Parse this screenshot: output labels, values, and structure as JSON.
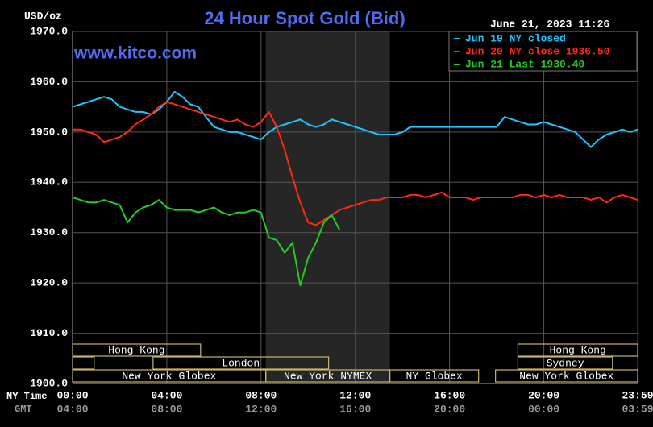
{
  "chart_data": {
    "type": "line",
    "title": "24 Hour Spot Gold (Bid)",
    "ylabel": "USD/oz",
    "timestamp": "June 21, 2023 11:26",
    "watermark": "www.kitco.com",
    "xlabel": "NY Time",
    "xlabel2": "GMT",
    "x": [
      0,
      20,
      40,
      60,
      80,
      100,
      120,
      140,
      160,
      180,
      200,
      220,
      240,
      260,
      280,
      300,
      320,
      340,
      360,
      380,
      400,
      420,
      440,
      460,
      480,
      500,
      520,
      540,
      560,
      580,
      600,
      620,
      640,
      660,
      680,
      700,
      720,
      740,
      760,
      780,
      800,
      820,
      840,
      860,
      880,
      900,
      920,
      940,
      960,
      980,
      1000,
      1020,
      1040,
      1060,
      1080,
      1100,
      1120,
      1140,
      1160,
      1180,
      1200,
      1220,
      1240,
      1260,
      1280,
      1300,
      1320,
      1340,
      1360,
      1380,
      1400,
      1420,
      1439
    ],
    "xlim": [
      0,
      1439
    ],
    "xticks": [
      {
        "value": 0,
        "label": "00:00"
      },
      {
        "value": 240,
        "label": "04:00"
      },
      {
        "value": 480,
        "label": "08:00"
      },
      {
        "value": 720,
        "label": "12:00"
      },
      {
        "value": 960,
        "label": "16:00"
      },
      {
        "value": 1200,
        "label": "20:00"
      },
      {
        "value": 1439,
        "label": "23:59"
      }
    ],
    "xticks2": [
      {
        "value": 0,
        "label": "04:00"
      },
      {
        "value": 240,
        "label": "08:00"
      },
      {
        "value": 480,
        "label": "12:00"
      },
      {
        "value": 720,
        "label": "16:00"
      },
      {
        "value": 960,
        "label": "20:00"
      },
      {
        "value": 1200,
        "label": "00:00"
      },
      {
        "value": 1439,
        "label": "03:59"
      }
    ],
    "ylim": [
      1900,
      1970
    ],
    "yticks": [
      {
        "value": 1900,
        "label": "1900.0"
      },
      {
        "value": 1910,
        "label": "1910.0"
      },
      {
        "value": 1920,
        "label": "1920.0"
      },
      {
        "value": 1930,
        "label": "1930.0"
      },
      {
        "value": 1940,
        "label": "1940.0"
      },
      {
        "value": 1950,
        "label": "1950.0"
      },
      {
        "value": 1960,
        "label": "1960.0"
      },
      {
        "value": 1970,
        "label": "1970.0"
      }
    ],
    "grid": true,
    "legend": "top-right",
    "series": [
      {
        "name": "Jun 19 NY closed",
        "color": "#22c4ff",
        "values": [
          1955,
          1955.5,
          1956,
          1956.5,
          1957,
          1956.5,
          1955,
          1954.5,
          1954,
          1954,
          1953.5,
          1954.5,
          1956,
          1958,
          1957,
          1955.5,
          1955,
          1953,
          1951,
          1950.5,
          1950,
          1950,
          1949.5,
          1949,
          1948.5,
          1950,
          1951,
          1951.5,
          1952,
          1952.5,
          1951.5,
          1951,
          1951.5,
          1952.5,
          1952,
          1951.5,
          1951,
          1950.5,
          1950,
          1949.5,
          1949.5,
          1949.5,
          1950,
          1951,
          1951,
          1951,
          1951,
          1951,
          1951,
          1951,
          1951,
          1951,
          1951,
          1951,
          1951,
          1953,
          1952.5,
          1952,
          1951.5,
          1951.5,
          1952,
          1951.5,
          1951,
          1950.5,
          1950,
          1948.5,
          1947,
          1948.5,
          1949.5,
          1950,
          1950.5,
          1950,
          1950.5
        ]
      },
      {
        "name": "Jun 20 NY close 1936.50",
        "color": "#ff2a10",
        "values": [
          1950.5,
          1950.5,
          1950,
          1949.5,
          1948,
          1948.5,
          1949,
          1950,
          1951.5,
          1952.5,
          1953.5,
          1955,
          1956,
          1955.5,
          1955,
          1954.5,
          1954,
          1953.5,
          1953,
          1952.5,
          1952,
          1952.5,
          1951.5,
          1951,
          1952,
          1954,
          1951,
          1946.5,
          1941,
          1936,
          1932,
          1931.5,
          1932.5,
          1933.5,
          1934.5,
          1935,
          1935.5,
          1936,
          1936.5,
          1936.5,
          1937,
          1937,
          1937,
          1937.5,
          1937.5,
          1937,
          1937.5,
          1938,
          1937,
          1937,
          1937,
          1936.5,
          1937,
          1937,
          1937,
          1937,
          1937,
          1937.5,
          1937.5,
          1937,
          1937.5,
          1937,
          1937.5,
          1937,
          1937,
          1937,
          1936.5,
          1937,
          1936,
          1937,
          1937.5,
          1937,
          1936.5
        ]
      },
      {
        "name": "Jun 21 Last 1930.40",
        "color": "#22cc22",
        "values": [
          1937,
          1936.5,
          1936,
          1936,
          1936.5,
          1936,
          1935.5,
          1932,
          1934,
          1935,
          1935.5,
          1936.5,
          1935,
          1934.5,
          1934.5,
          1934.5,
          1934,
          1934.5,
          1935,
          1934,
          1933.5,
          1934,
          1934,
          1934.5,
          1934,
          1929,
          1928.5,
          1926,
          1928,
          1919.5,
          1925,
          1928,
          1932,
          1933.5,
          1930.5,
          null,
          null,
          null,
          null,
          null,
          null,
          null,
          null,
          null,
          null,
          null,
          null,
          null,
          null,
          null,
          null,
          null,
          null,
          null,
          null,
          null,
          null,
          null,
          null,
          null,
          null,
          null,
          null,
          null,
          null,
          null,
          null,
          null,
          null,
          null,
          null,
          null,
          null
        ]
      }
    ],
    "sessions": [
      [
        {
          "label": "Hong Kong",
          "start": 0,
          "end": 326
        },
        {
          "label": "Hong Kong",
          "start": 1134,
          "end": 1439
        }
      ],
      [
        {
          "start": 0,
          "end": 55
        },
        {
          "label": "London",
          "start": 205,
          "end": 652
        },
        {
          "label": "Sydney",
          "start": 1134,
          "end": 1375
        }
      ],
      [
        {
          "label": "New York Globex",
          "start": 0,
          "end": 492
        },
        {
          "label": "New York NYMEX",
          "start": 492,
          "end": 808,
          "shaded": true
        },
        {
          "label": "NY Globex",
          "start": 808,
          "end": 1034
        },
        {
          "label": "New York Globex",
          "start": 1077,
          "end": 1439
        }
      ]
    ]
  }
}
